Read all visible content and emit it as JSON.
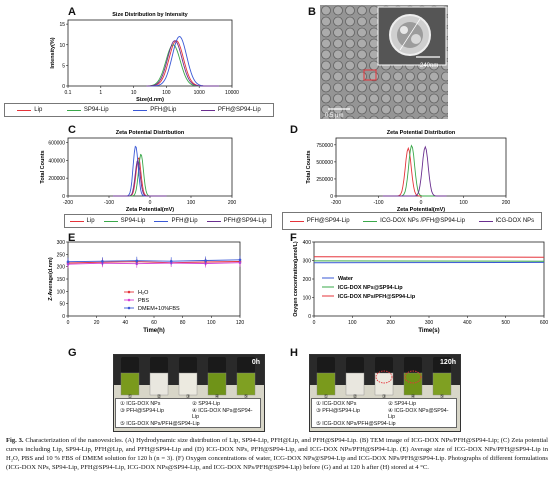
{
  "panels": {
    "A": {
      "label": "A",
      "title": "Size Distribution by Intensity",
      "xlabel": "Size(d.nm)",
      "ylabel": "Intensity(%)",
      "ytick_labels": [
        "0",
        "5",
        "10",
        "15"
      ],
      "xtick_labels": [
        "0.1",
        "1",
        "10",
        "100",
        "1000",
        "10000"
      ],
      "legend": [
        "Lip",
        "SP94-Lip",
        "PFH@Lip",
        "PFH@SP94-Lip"
      ]
    },
    "B": {
      "label": "B",
      "scale_inner": "240nm",
      "scale_outer": "0.5 μm"
    },
    "C": {
      "label": "C",
      "title": "Zeta Potential Distribution",
      "xlabel": "Zeta Potential(mV)",
      "ylabel": "Total Counts",
      "ytick_labels": [
        "0",
        "200000",
        "400000",
        "600000"
      ],
      "xtick_labels": [
        "-200",
        "-100",
        "0",
        "100",
        "200"
      ],
      "legend": [
        "Lip",
        "SP94-Lip",
        "PFH@Lip",
        "PFH@SP94-Lip"
      ]
    },
    "D": {
      "label": "D",
      "title": "Zeta Potential Distribution",
      "xlabel": "Zeta Potential(mV)",
      "ylabel": "Total Counts",
      "ytick_labels": [
        "0",
        "250000",
        "500000",
        "750000"
      ],
      "xtick_labels": [
        "-200",
        "-100",
        "0",
        "100",
        "200"
      ],
      "legend": [
        "PFH@SP94-Lip",
        "ICG-DOX NPs /PFH@SP94-Lip",
        "ICG-DOX NPs"
      ]
    },
    "E": {
      "label": "E",
      "xlabel": "Time(h)",
      "ylabel": "Z-Average(d.nm)",
      "ytick_labels": [
        "0",
        "50",
        "100",
        "150",
        "200",
        "250",
        "300"
      ],
      "xtick_labels": [
        "0",
        "20",
        "40",
        "60",
        "80",
        "100",
        "120"
      ],
      "legend": [
        "H₂O",
        "PBS",
        "DMEM+10%FBS"
      ]
    },
    "F": {
      "label": "F",
      "xlabel": "Time(s)",
      "ylabel": "Oxygen concentration(μmol/L)",
      "ytick_labels": [
        "0",
        "100",
        "200",
        "300",
        "400"
      ],
      "xtick_labels": [
        "0",
        "100",
        "200",
        "300",
        "400",
        "500",
        "600"
      ],
      "legend": [
        "Water",
        "ICG-DOX NPs@SP94-Lip",
        "ICG-DOX NPs/PFH@SP94-Lip"
      ]
    },
    "G": {
      "label": "G",
      "time": "0h",
      "vial_numbers": [
        "①",
        "②",
        "③",
        "④",
        "⑤"
      ],
      "legend": [
        "① ICG-DOX NPs",
        "② SP94-Lip",
        "③ PFH@SP94-Lip",
        "④ ICG-DOX NPs@SP94-Lip",
        "⑤ ICG-DOX NPs/PFH@SP94-Lip"
      ]
    },
    "H": {
      "label": "H",
      "time": "120h",
      "vial_numbers": [
        "①",
        "②",
        "③",
        "④",
        "⑤"
      ],
      "legend": [
        "① ICG-DOX NPs",
        "② SP94-Lip",
        "③ PFH@SP94-Lip",
        "④ ICG-DOX NPs@SP94-Lip",
        "⑤ ICG-DOX NPs/PFH@SP94-Lip"
      ]
    }
  },
  "colors": {
    "red": "#e5333a",
    "green": "#3aa84a",
    "blue": "#3a58d6",
    "purple": "#6a2f8f",
    "magenta": "#d43fd4"
  },
  "chart_data": [
    {
      "type": "line",
      "panel": "A",
      "title": "Size Distribution by Intensity",
      "xlabel": "Size(d.nm)",
      "ylabel": "Intensity(%)",
      "xscale": "log",
      "xlim": [
        0.1,
        10000
      ],
      "ylim": [
        0,
        16
      ],
      "series": [
        {
          "name": "Lip",
          "peak_x": 200,
          "peak_y": 11
        },
        {
          "name": "SP94-Lip",
          "peak_x": 160,
          "peak_y": 10
        },
        {
          "name": "PFH@Lip",
          "peak_x": 250,
          "peak_y": 12
        },
        {
          "name": "PFH@SP94-Lip",
          "peak_x": 180,
          "peak_y": 11
        }
      ]
    },
    {
      "type": "line",
      "panel": "C",
      "title": "Zeta Potential Distribution",
      "xlabel": "Zeta Potential(mV)",
      "ylabel": "Total Counts",
      "xlim": [
        -200,
        200
      ],
      "ylim": [
        0,
        650000
      ],
      "series": [
        {
          "name": "Lip",
          "peak_x": -28,
          "peak_y": 430000
        },
        {
          "name": "SP94-Lip",
          "peak_x": -22,
          "peak_y": 470000
        },
        {
          "name": "PFH@Lip",
          "peak_x": -35,
          "peak_y": 560000
        },
        {
          "name": "PFH@SP94-Lip",
          "peak_x": -30,
          "peak_y": 400000
        }
      ]
    },
    {
      "type": "line",
      "panel": "D",
      "title": "Zeta Potential Distribution",
      "xlabel": "Zeta Potential(mV)",
      "ylabel": "Total Counts",
      "xlim": [
        -200,
        200
      ],
      "ylim": [
        0,
        850000
      ],
      "series": [
        {
          "name": "PFH@SP94-Lip",
          "peak_x": -30,
          "peak_y": 700000
        },
        {
          "name": "ICG-DOX NPs /PFH@SP94-Lip",
          "peak_x": -22,
          "peak_y": 740000
        },
        {
          "name": "ICG-DOX NPs",
          "peak_x": 10,
          "peak_y": 720000
        }
      ]
    },
    {
      "type": "line",
      "panel": "E",
      "xlabel": "Time(h)",
      "ylabel": "Z-Average(d.nm)",
      "xlim": [
        0,
        120
      ],
      "ylim": [
        0,
        300
      ],
      "x": [
        0,
        24,
        48,
        72,
        96,
        120
      ],
      "series": [
        {
          "name": "H₂O",
          "values": [
            215,
            218,
            220,
            216,
            219,
            221
          ]
        },
        {
          "name": "PBS",
          "values": [
            210,
            214,
            212,
            215,
            213,
            216
          ]
        },
        {
          "name": "DMEM+10%FBS",
          "values": [
            220,
            222,
            224,
            222,
            225,
            228
          ]
        }
      ]
    },
    {
      "type": "line",
      "panel": "F",
      "xlabel": "Time(s)",
      "ylabel": "Oxygen concentration(μmol/L)",
      "xlim": [
        0,
        600
      ],
      "ylim": [
        0,
        400
      ],
      "x": [
        0,
        600
      ],
      "series": [
        {
          "name": "Water",
          "values": [
            288,
            290
          ]
        },
        {
          "name": "ICG-DOX NPs@SP94-Lip",
          "values": [
            298,
            296
          ]
        },
        {
          "name": "ICG-DOX NPs/PFH@SP94-Lip",
          "values": [
            320,
            318
          ]
        }
      ]
    }
  ],
  "caption": {
    "lead": "Fig. 3.",
    "text": "Characterization of the nanovesicles. (A) Hydrodynamic size distribution of Lip, SP94-Lip, PFH@Lip, and PFH@SP94-Lip. (B) TEM image of ICG-DOX NPs/PFH@SP94-Lip; (C) Zeta potential curves including Lip, SP94-Lip, PFH@Lip, and PFH@SP94-Lip and (D) ICG-DOX NPs, PFH@SP94-Lip, and ICG-DOX NPs/PFH@SP94-Lip. (E) Average size of ICG-DOX NPs/PFH@SP94-Lip in H₂O, PBS and 10 % FBS of DMEM solution for 120 h (n = 3). (F) Oxygen concentrations of water, ICG-DOX NPs@SP94-Lip and ICG-DOX NPs/PFH@SP94-Lip. Photographs of different formulations (ICG-DOX NPs, SP94-Lip, PFH@SP94-Lip, ICG-DOX NPs@SP94-Lip, and ICG-DOX NPs/PFH@SP94-Lip) before (G) and at 120 h after (H) stored at 4 °C."
  }
}
